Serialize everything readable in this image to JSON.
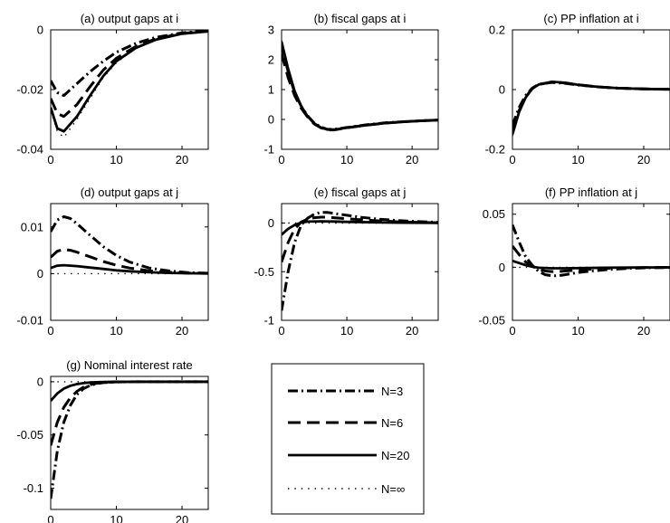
{
  "chart_data": {
    "type": "line",
    "legend": {
      "placement": "bottom-center (separate box)",
      "entries": [
        {
          "name": "N=3",
          "style": "dash-dot"
        },
        {
          "name": "N=6",
          "style": "dashed"
        },
        {
          "name": "N=20",
          "style": "solid"
        },
        {
          "name": "N=∞",
          "style": "dotted"
        }
      ]
    },
    "panels": [
      {
        "title": "(a) output gaps at i",
        "xlim": [
          0,
          24
        ],
        "ylim": [
          -0.04,
          0
        ],
        "yticks": [
          0,
          -0.02,
          -0.04
        ],
        "ytick_labels": [
          "0",
          "-0.02",
          "-0.04"
        ],
        "xticks": [
          0,
          10,
          20
        ],
        "xtick_labels": [
          "0",
          "10",
          "20"
        ],
        "series": [
          {
            "name": "N=3",
            "x": [
              0,
              1,
              2,
              4,
              6,
              8,
              10,
              13,
              16,
              20,
              24
            ],
            "y": [
              -0.017,
              -0.021,
              -0.022,
              -0.018,
              -0.014,
              -0.0105,
              -0.0075,
              -0.0045,
              -0.0025,
              -0.001,
              -0.0003
            ]
          },
          {
            "name": "N=6",
            "x": [
              0,
              1,
              2,
              4,
              6,
              8,
              10,
              13,
              16,
              20,
              24
            ],
            "y": [
              -0.023,
              -0.028,
              -0.029,
              -0.025,
              -0.019,
              -0.0135,
              -0.0095,
              -0.0055,
              -0.003,
              -0.0012,
              -0.0004
            ]
          },
          {
            "name": "N=20",
            "x": [
              0,
              1,
              2,
              4,
              6,
              8,
              10,
              13,
              16,
              20,
              24
            ],
            "y": [
              -0.026,
              -0.033,
              -0.034,
              -0.029,
              -0.022,
              -0.0155,
              -0.0105,
              -0.006,
              -0.0033,
              -0.0013,
              -0.0005
            ]
          },
          {
            "name": "N=∞",
            "x": [
              0,
              1,
              2,
              4,
              6,
              8,
              10,
              13,
              16,
              20,
              24
            ],
            "y": [
              -0.027,
              -0.034,
              -0.036,
              -0.03,
              -0.023,
              -0.016,
              -0.011,
              -0.0062,
              -0.0034,
              -0.0014,
              -0.0005
            ]
          }
        ]
      },
      {
        "title": "(b) fiscal gaps at i",
        "xlim": [
          0,
          24
        ],
        "ylim": [
          -1,
          3
        ],
        "yticks": [
          3,
          2,
          1,
          0,
          -1
        ],
        "ytick_labels": [
          "3",
          "2",
          "1",
          "0",
          "-1"
        ],
        "xticks": [
          0,
          10,
          20
        ],
        "xtick_labels": [
          "0",
          "10",
          "20"
        ],
        "series": [
          {
            "name": "N=3",
            "x": [
              0,
              1,
              2,
              3,
              4,
              5,
              6,
              7,
              8,
              10,
              13,
              16,
              20,
              24
            ],
            "y": [
              2.5,
              1.6,
              0.9,
              0.45,
              0.12,
              -0.12,
              -0.25,
              -0.33,
              -0.33,
              -0.27,
              -0.18,
              -0.11,
              -0.06,
              -0.02
            ]
          },
          {
            "name": "N=6",
            "x": [
              0,
              1,
              2,
              3,
              4,
              5,
              6,
              7,
              8,
              10,
              13,
              16,
              20,
              24
            ],
            "y": [
              2.2,
              1.4,
              0.8,
              0.38,
              0.08,
              -0.15,
              -0.28,
              -0.35,
              -0.35,
              -0.28,
              -0.19,
              -0.12,
              -0.06,
              -0.02
            ]
          },
          {
            "name": "N=20",
            "x": [
              0,
              1,
              2,
              3,
              4,
              5,
              6,
              7,
              8,
              10,
              13,
              16,
              20,
              24
            ],
            "y": [
              2.6,
              1.7,
              0.95,
              0.45,
              0.1,
              -0.13,
              -0.27,
              -0.34,
              -0.34,
              -0.28,
              -0.19,
              -0.12,
              -0.06,
              -0.02
            ]
          },
          {
            "name": "N=∞",
            "x": [
              0,
              1,
              2,
              3,
              4,
              5,
              6,
              7,
              8,
              10,
              13,
              16,
              20,
              24
            ],
            "y": [
              2.65,
              1.75,
              1.0,
              0.48,
              0.12,
              -0.12,
              -0.26,
              -0.33,
              -0.34,
              -0.28,
              -0.19,
              -0.12,
              -0.06,
              -0.02
            ]
          }
        ]
      },
      {
        "title": "(c) PP inflation at i",
        "xlim": [
          0,
          24
        ],
        "ylim": [
          -0.2,
          0.2
        ],
        "yticks": [
          0.2,
          0,
          -0.2
        ],
        "ytick_labels": [
          "0.2",
          "0",
          "-0.2"
        ],
        "xticks": [
          0,
          10,
          20
        ],
        "xtick_labels": [
          "0",
          "10",
          "20"
        ],
        "series": [
          {
            "name": "N=3",
            "x": [
              0,
              1,
              2,
              3,
              4,
              6,
              8,
              10,
              13,
              16,
              20,
              24
            ],
            "y": [
              -0.12,
              -0.06,
              -0.02,
              0.005,
              0.018,
              0.024,
              0.021,
              0.015,
              0.009,
              0.005,
              0.002,
              0.001
            ]
          },
          {
            "name": "N=6",
            "x": [
              0,
              1,
              2,
              3,
              4,
              6,
              8,
              10,
              13,
              16,
              20,
              24
            ],
            "y": [
              -0.14,
              -0.07,
              -0.025,
              0.003,
              0.017,
              0.025,
              0.022,
              0.016,
              0.009,
              0.005,
              0.002,
              0.001
            ]
          },
          {
            "name": "N=20",
            "x": [
              0,
              1,
              2,
              3,
              4,
              6,
              8,
              10,
              13,
              16,
              20,
              24
            ],
            "y": [
              -0.15,
              -0.075,
              -0.027,
              0.003,
              0.017,
              0.026,
              0.023,
              0.016,
              0.009,
              0.005,
              0.002,
              0.001
            ]
          },
          {
            "name": "N=∞",
            "x": [
              0,
              1,
              2,
              3,
              4,
              6,
              8,
              10,
              13,
              16,
              20,
              24
            ],
            "y": [
              -0.155,
              -0.078,
              -0.028,
              0.003,
              0.017,
              0.026,
              0.023,
              0.016,
              0.009,
              0.005,
              0.002,
              0.001
            ]
          }
        ]
      },
      {
        "title": "(d) output gaps at j",
        "xlim": [
          0,
          24
        ],
        "ylim": [
          -0.01,
          0.015
        ],
        "yticks": [
          0.01,
          0,
          -0.01
        ],
        "ytick_labels": [
          "0.01",
          "0",
          "-0.01"
        ],
        "xticks": [
          0,
          10,
          20
        ],
        "xtick_labels": [
          "0",
          "10",
          "20"
        ],
        "series": [
          {
            "name": "N=3",
            "x": [
              0,
              1,
              2,
              3,
              4,
              6,
              8,
              10,
              12,
              15,
              18,
              21,
              24
            ],
            "y": [
              0.009,
              0.0115,
              0.0122,
              0.0118,
              0.0107,
              0.0082,
              0.0058,
              0.0039,
              0.0025,
              0.0012,
              0.0006,
              0.0002,
              0.0001
            ]
          },
          {
            "name": "N=6",
            "x": [
              0,
              1,
              2,
              3,
              4,
              6,
              8,
              10,
              12,
              15,
              18,
              21,
              24
            ],
            "y": [
              0.0035,
              0.0048,
              0.0052,
              0.005,
              0.0046,
              0.0036,
              0.0026,
              0.0018,
              0.0012,
              0.0006,
              0.0003,
              0.0001,
              5e-05
            ]
          },
          {
            "name": "N=20",
            "x": [
              0,
              1,
              2,
              4,
              6,
              8,
              10,
              12,
              15,
              18,
              21,
              24
            ],
            "y": [
              0.0012,
              0.0017,
              0.0018,
              0.0016,
              0.0013,
              0.001,
              0.0007,
              0.0005,
              0.0003,
              0.00015,
              7e-05,
              3e-05
            ]
          },
          {
            "name": "N=∞",
            "x": [
              0,
              24
            ],
            "y": [
              0,
              0
            ]
          }
        ]
      },
      {
        "title": "(e) fiscal gaps at j",
        "xlim": [
          0,
          24
        ],
        "ylim": [
          -1,
          0.2
        ],
        "yticks": [
          0,
          -0.5,
          -1
        ],
        "ytick_labels": [
          "0",
          "-0.5",
          "-1"
        ],
        "xticks": [
          0,
          10,
          20
        ],
        "xtick_labels": [
          "0",
          "10",
          "20"
        ],
        "series": [
          {
            "name": "N=3",
            "x": [
              0,
              1,
              2,
              3,
              4,
              5,
              6,
              7,
              8,
              10,
              12,
              15,
              18,
              21,
              24
            ],
            "y": [
              -0.9,
              -0.5,
              -0.2,
              -0.02,
              0.05,
              0.09,
              0.11,
              0.11,
              0.1,
              0.08,
              0.06,
              0.04,
              0.025,
              0.015,
              0.008
            ]
          },
          {
            "name": "N=6",
            "x": [
              0,
              1,
              2,
              3,
              4,
              5,
              6,
              7,
              8,
              10,
              12,
              15,
              18,
              21,
              24
            ],
            "y": [
              -0.4,
              -0.2,
              -0.06,
              0.01,
              0.04,
              0.055,
              0.06,
              0.06,
              0.055,
              0.045,
              0.035,
              0.022,
              0.013,
              0.007,
              0.004
            ]
          },
          {
            "name": "N=20",
            "x": [
              0,
              1,
              2,
              3,
              4,
              6,
              8,
              10,
              14,
              18,
              24
            ],
            "y": [
              -0.12,
              -0.06,
              -0.02,
              0.005,
              0.015,
              0.018,
              0.016,
              0.012,
              0.007,
              0.004,
              0.002
            ]
          },
          {
            "name": "N=∞",
            "x": [
              0,
              24
            ],
            "y": [
              0,
              0
            ]
          }
        ]
      },
      {
        "title": "(f) PP inflation at j",
        "xlim": [
          0,
          24
        ],
        "ylim": [
          -0.05,
          0.06
        ],
        "yticks": [
          0.05,
          0,
          -0.05
        ],
        "ytick_labels": [
          "0.05",
          "0",
          "-0.05"
        ],
        "xticks": [
          0,
          10,
          20
        ],
        "xtick_labels": [
          "0",
          "10",
          "20"
        ],
        "series": [
          {
            "name": "N=3",
            "x": [
              0,
              1,
              2,
              3,
              4,
              5,
              6,
              7,
              8,
              10,
              12,
              15,
              18,
              21,
              24
            ],
            "y": [
              0.04,
              0.024,
              0.01,
              0.002,
              -0.004,
              -0.007,
              -0.008,
              -0.008,
              -0.007,
              -0.005,
              -0.0035,
              -0.002,
              -0.001,
              -0.0005,
              -0.0002
            ]
          },
          {
            "name": "N=6",
            "x": [
              0,
              1,
              2,
              3,
              4,
              5,
              6,
              7,
              8,
              10,
              12,
              15,
              18,
              21,
              24
            ],
            "y": [
              0.02,
              0.012,
              0.005,
              0.001,
              -0.002,
              -0.0035,
              -0.004,
              -0.004,
              -0.0035,
              -0.0025,
              -0.0018,
              -0.001,
              -0.0005,
              -0.0002,
              -0.0001
            ]
          },
          {
            "name": "N=20",
            "x": [
              0,
              1,
              2,
              3,
              4,
              6,
              8,
              10,
              14,
              18,
              24
            ],
            "y": [
              0.006,
              0.004,
              0.002,
              0.0005,
              -0.0005,
              -0.001,
              -0.001,
              -0.0008,
              -0.0005,
              -0.0002,
              -0.0001
            ]
          },
          {
            "name": "N=∞",
            "x": [
              0,
              24
            ],
            "y": [
              0,
              0
            ]
          }
        ]
      },
      {
        "title": "(g) Nominal interest rate",
        "xlim": [
          0,
          24
        ],
        "ylim": [
          -0.12,
          0.005
        ],
        "yticks": [
          0,
          -0.05,
          -0.1
        ],
        "ytick_labels": [
          "0",
          "-0.05",
          "-0.1"
        ],
        "xticks": [
          0,
          10,
          20
        ],
        "xtick_labels": [
          "0",
          "10",
          "20"
        ],
        "series": [
          {
            "name": "N=3",
            "x": [
              0,
              1,
              2,
              3,
              4,
              5,
              6,
              7,
              8,
              10,
              13,
              16,
              20,
              24
            ],
            "y": [
              -0.11,
              -0.065,
              -0.038,
              -0.022,
              -0.012,
              -0.0065,
              -0.0035,
              -0.0018,
              -0.0009,
              -0.0002,
              0,
              0,
              0,
              0
            ]
          },
          {
            "name": "N=6",
            "x": [
              0,
              1,
              2,
              3,
              4,
              5,
              6,
              7,
              8,
              10,
              13,
              16,
              20,
              24
            ],
            "y": [
              -0.06,
              -0.038,
              -0.024,
              -0.015,
              -0.009,
              -0.005,
              -0.0028,
              -0.0015,
              -0.0008,
              -0.0002,
              0,
              0,
              0,
              0
            ]
          },
          {
            "name": "N=20",
            "x": [
              0,
              1,
              2,
              3,
              4,
              5,
              6,
              7,
              8,
              10,
              13,
              16,
              20,
              24
            ],
            "y": [
              -0.018,
              -0.011,
              -0.0065,
              -0.0038,
              -0.0022,
              -0.0013,
              -0.0007,
              -0.0004,
              -0.0002,
              -5e-05,
              0,
              0,
              0,
              0
            ]
          },
          {
            "name": "N=∞",
            "x": [
              0,
              24
            ],
            "y": [
              0,
              0
            ]
          }
        ]
      }
    ]
  }
}
